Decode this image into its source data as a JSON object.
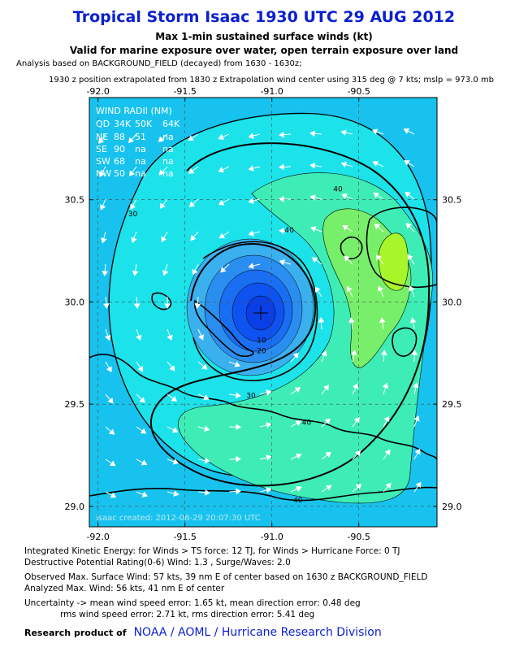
{
  "chart_data": {
    "type": "contour_map",
    "title": "Tropical Storm Isaac 1930 UTC 29 AUG 2012",
    "subtitle": "Max 1-min sustained surface winds (kt)",
    "subtitle2": "Valid for marine exposure over water, open terrain exposure over land",
    "analysis_line1": "Analysis based on BACKGROUND_FIELD (decayed) from 1630 - 1630z;",
    "analysis_line2": "1930 z position extrapolated from 1830 z Extrapolation wind center using 315 deg @ 7 kts; mslp = 973.0 mb",
    "xlim": [
      -92.05,
      -90.05
    ],
    "ylim": [
      28.9,
      31.0
    ],
    "x_ticks": [
      -92.0,
      -91.5,
      -91.0,
      -90.5
    ],
    "x_tick_labels": [
      "-92.0",
      "-91.5",
      "-91.0",
      "-90.5"
    ],
    "y_ticks": [
      29.0,
      29.5,
      30.0,
      30.5
    ],
    "y_tick_labels": [
      "29.0",
      "29.5",
      "30.0",
      "30.5"
    ],
    "center": {
      "lon": -91.07,
      "lat": 29.92
    },
    "contour_levels": [
      10,
      20,
      30,
      40,
      50
    ],
    "contour_labels": [
      {
        "text": "10",
        "lon": -91.06,
        "lat": 29.8
      },
      {
        "text": "20",
        "lon": -91.06,
        "lat": 29.75
      },
      {
        "text": "30",
        "lon": -91.12,
        "lat": 29.53
      },
      {
        "text": "30",
        "lon": -91.8,
        "lat": 30.42
      },
      {
        "text": "40",
        "lon": -90.62,
        "lat": 30.54
      },
      {
        "text": "40",
        "lon": -90.9,
        "lat": 30.34
      },
      {
        "text": "40",
        "lon": -90.8,
        "lat": 29.4
      },
      {
        "text": "40",
        "lon": -90.85,
        "lat": 29.02
      }
    ],
    "wind_radii": {
      "header": "WIND RADII (NM)",
      "columns": [
        "QD",
        "34K",
        "50K",
        "64K"
      ],
      "rows": [
        [
          "NE",
          "88",
          "51",
          "na"
        ],
        [
          "SE",
          "90",
          "na",
          "na"
        ],
        [
          "SW",
          "68",
          "na",
          "na"
        ],
        [
          "NW",
          "50",
          "na",
          "na"
        ]
      ]
    },
    "watermark": "isaac  created: 2012-08-29 20:07:30 UTC"
  },
  "footer": {
    "ike": "Integrated Kinetic Energy: for Winds > TS force: 12 TJ, for Winds > Hurricane Force: 0 TJ",
    "dpr": "Destructive Potential Rating(0-6)  Wind: 1.3 , Surge/Waves: 2.0",
    "obs": "Observed Max. Surface Wind: 57 kts, 39 nm E of center based on 1630 z BACKGROUND_FIELD",
    "analyzed": "Analyzed Max. Wind: 56 kts, 41 nm  E of center",
    "unc1": "Uncertainty -> mean wind speed error: 1.65 kt, mean direction error: 0.48 deg",
    "unc2": "rms wind speed error: 2.71 kt, rms direction error: 5.41 deg",
    "credit_label": "Research product of",
    "credit_org": "NOAA  /  AOML  /  Hurricane Research Division"
  },
  "colors": {
    "title": "#0a1fd0",
    "bg": "#17c3ee",
    "band_30": "#1ce2ea",
    "band_40": "#3eedb5",
    "band_50": "#78ef6a",
    "band_55": "#a8f52a",
    "core": [
      "#3bb0ef",
      "#2a8ef0",
      "#1a6ef2",
      "#0e52f0",
      "#0a3ee6"
    ]
  }
}
